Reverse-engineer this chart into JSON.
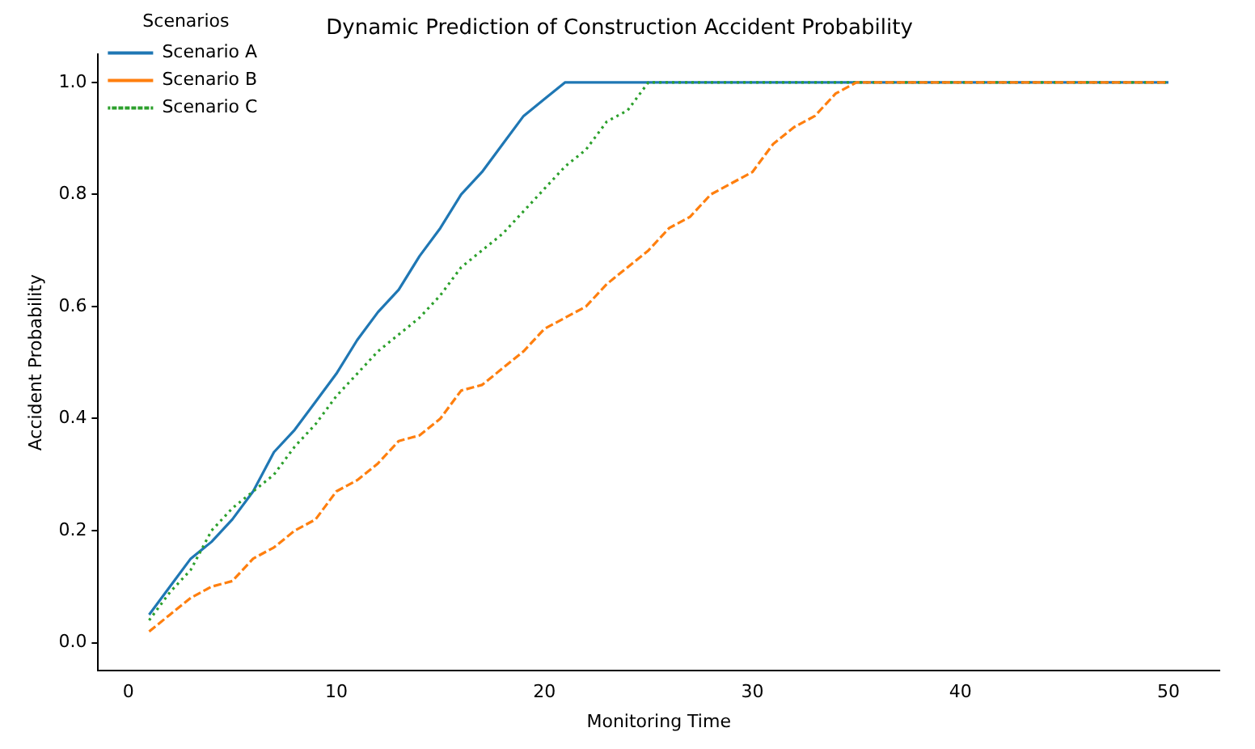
{
  "chart_data": {
    "type": "line",
    "title": "Dynamic Prediction of Construction Accident Probability",
    "xlabel": "Monitoring Time",
    "ylabel": "Accident Probability",
    "legend_title": "Scenarios",
    "legend": "top left",
    "grid": false,
    "marker": "none",
    "x": [
      1,
      2,
      3,
      4,
      5,
      6,
      7,
      8,
      9,
      10,
      11,
      12,
      13,
      14,
      15,
      16,
      17,
      18,
      19,
      20,
      21,
      22,
      23,
      24,
      25,
      26,
      27,
      28,
      29,
      30,
      31,
      32,
      33,
      34,
      35,
      36,
      37,
      38,
      39,
      40,
      41,
      42,
      43,
      44,
      45,
      46,
      47,
      48,
      49,
      50
    ],
    "xlim": [
      -1.45,
      52.45
    ],
    "xticks": [
      0,
      10,
      20,
      30,
      40,
      50
    ],
    "ylim": [
      -0.05,
      1.05
    ],
    "yticks": [
      {
        "value": 0,
        "label": "0.0"
      },
      {
        "value": 0.2,
        "label": "0.2"
      },
      {
        "value": 0.4,
        "label": "0.4"
      },
      {
        "value": 0.6,
        "label": "0.6"
      },
      {
        "value": 0.8,
        "label": "0.8"
      },
      {
        "value": 1,
        "label": "1.0"
      }
    ],
    "series": [
      {
        "name": "Scenario A",
        "color": "#1f77b4",
        "line_style": "solid",
        "values": [
          0.05,
          0.1,
          0.15,
          0.18,
          0.22,
          0.27,
          0.34,
          0.38,
          0.43,
          0.48,
          0.54,
          0.59,
          0.63,
          0.69,
          0.74,
          0.8,
          0.84,
          0.89,
          0.94,
          0.97,
          1,
          1,
          1,
          1,
          1,
          1,
          1,
          1,
          1,
          1,
          1,
          1,
          1,
          1,
          1,
          1,
          1,
          1,
          1,
          1,
          1,
          1,
          1,
          1,
          1,
          1,
          1,
          1,
          1,
          1
        ]
      },
      {
        "name": "Scenario B",
        "color": "#ff7f0e",
        "line_style": "dashed",
        "values": [
          0.02,
          0.05,
          0.08,
          0.1,
          0.11,
          0.15,
          0.17,
          0.2,
          0.22,
          0.27,
          0.29,
          0.32,
          0.36,
          0.37,
          0.4,
          0.45,
          0.46,
          0.49,
          0.52,
          0.56,
          0.58,
          0.6,
          0.64,
          0.67,
          0.7,
          0.74,
          0.76,
          0.8,
          0.82,
          0.84,
          0.89,
          0.92,
          0.94,
          0.98,
          1,
          1,
          1,
          1,
          1,
          1,
          1,
          1,
          1,
          1,
          1,
          1,
          1,
          1,
          1,
          1
        ]
      },
      {
        "name": "Scenario C",
        "color": "#2ca02c",
        "line_style": "dotted",
        "values": [
          0.04,
          0.09,
          0.13,
          0.2,
          0.24,
          0.27,
          0.3,
          0.35,
          0.39,
          0.44,
          0.48,
          0.52,
          0.55,
          0.58,
          0.62,
          0.67,
          0.7,
          0.73,
          0.77,
          0.81,
          0.85,
          0.88,
          0.93,
          0.95,
          1,
          1,
          1,
          1,
          1,
          1,
          1,
          1,
          1,
          1,
          1,
          1,
          1,
          1,
          1,
          1,
          1,
          1,
          1,
          1,
          1,
          1,
          1,
          1,
          1,
          1
        ]
      }
    ]
  }
}
